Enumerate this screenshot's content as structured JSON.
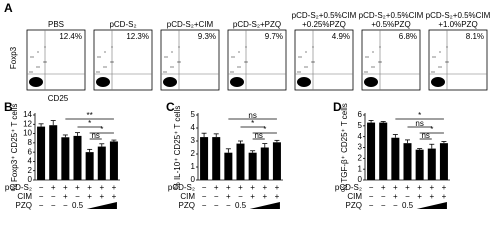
{
  "panel_labels": [
    "A",
    "B",
    "C",
    "D"
  ],
  "flow": {
    "x_label": "CD25",
    "y_label": "Foxp3",
    "plots": [
      {
        "title": [
          "PBS"
        ],
        "percent": "12.4%"
      },
      {
        "title": [
          "pCD-S₂"
        ],
        "percent": "12.3%"
      },
      {
        "title": [
          "pCD-S₂+CIM"
        ],
        "percent": "9.3%"
      },
      {
        "title": [
          "pCD-S₂+PZQ"
        ],
        "percent": "9.7%"
      },
      {
        "title": [
          "pCD-S₂+0.5%CIM",
          "+0.25%PZQ"
        ],
        "percent": "4.9%"
      },
      {
        "title": [
          "pCD-S₂+0.5%CIM",
          "+0.5%PZQ"
        ],
        "percent": "6.8%"
      },
      {
        "title": [
          "pCD-S₂+0.5%CIM",
          "+1.0%PZQ"
        ],
        "percent": "8.1%"
      }
    ]
  },
  "treatments": [
    {
      "name": "pCD-S₂",
      "marks": [
        "−",
        "+",
        "+",
        "+",
        "+",
        "+",
        "+"
      ]
    },
    {
      "name": "CIM",
      "marks": [
        "−",
        "−",
        "+",
        "−",
        "+",
        "+",
        "+"
      ]
    },
    {
      "name": "PZQ",
      "marks": [
        "−",
        "−",
        "−",
        "0.5",
        null,
        null,
        null
      ]
    }
  ],
  "chart_data": [
    {
      "type": "bar",
      "y_label": "% Foxp3⁺ CD25⁺ T cells",
      "color": "#000000",
      "values": [
        11.5,
        11.8,
        9.2,
        9.5,
        6.0,
        7.2,
        8.3
      ],
      "errors": [
        0.6,
        1.0,
        0.5,
        0.7,
        0.6,
        0.6,
        0.3
      ],
      "ylim": [
        0,
        14
      ],
      "yticks": [
        0,
        2,
        4,
        6,
        8,
        10,
        12,
        14
      ],
      "annotations": [
        "**",
        "*",
        "ns",
        "*"
      ]
    },
    {
      "type": "bar",
      "y_label": "% IL-10⁺ CD25⁺ T cells",
      "color": "#000000",
      "values": [
        3.3,
        3.3,
        2.1,
        2.8,
        2.1,
        2.5,
        2.9
      ],
      "errors": [
        0.3,
        0.25,
        0.3,
        0.2,
        0.15,
        0.3,
        0.15
      ],
      "ylim": [
        0,
        5
      ],
      "yticks": [
        0,
        1,
        2,
        3,
        4,
        5
      ],
      "annotations": [
        "ns",
        "*",
        "ns",
        "*"
      ]
    },
    {
      "type": "bar",
      "y_label": "% TGF-β⁺ CD25⁺ T cells",
      "color": "#000000",
      "values": [
        5.3,
        5.3,
        3.9,
        3.4,
        2.8,
        2.9,
        3.4
      ],
      "errors": [
        0.2,
        0.1,
        0.3,
        0.3,
        0.1,
        0.4,
        0.15
      ],
      "ylim": [
        0,
        6
      ],
      "yticks": [
        0,
        1,
        2,
        3,
        4,
        5,
        6
      ],
      "annotations": [
        "*",
        "ns",
        "ns",
        "*"
      ]
    }
  ]
}
